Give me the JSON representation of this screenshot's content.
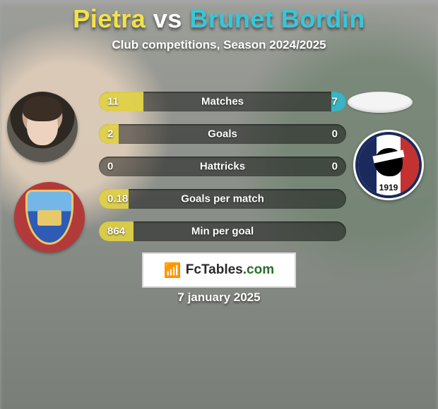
{
  "colors": {
    "player1": "#f2e24a",
    "player2": "#38c6d9",
    "bar_bg": "rgba(0,0,0,.45)",
    "text": "#ffffff"
  },
  "title": {
    "player1_name": "Pietra",
    "mid_word": "vs",
    "player2_name": "Brunet Bordin"
  },
  "subtitle": "Club competitions, Season 2024/2025",
  "crest_right_year": "1919",
  "stats": [
    {
      "label": "Matches",
      "v1": "11",
      "v2": "7",
      "w1_pct": 18,
      "w2_pct": 6
    },
    {
      "label": "Goals",
      "v1": "2",
      "v2": "0",
      "w1_pct": 8,
      "w2_pct": 0
    },
    {
      "label": "Hattricks",
      "v1": "0",
      "v2": "0",
      "w1_pct": 0,
      "w2_pct": 0
    },
    {
      "label": "Goals per match",
      "v1": "0.18",
      "v2": "",
      "w1_pct": 12,
      "w2_pct": 0
    },
    {
      "label": "Min per goal",
      "v1": "864",
      "v2": "",
      "w1_pct": 14,
      "w2_pct": 0
    }
  ],
  "footer": {
    "brand_icon": "📶",
    "brand_part1": "FcTables",
    "brand_part2": ".com",
    "date": "7 january 2025"
  }
}
